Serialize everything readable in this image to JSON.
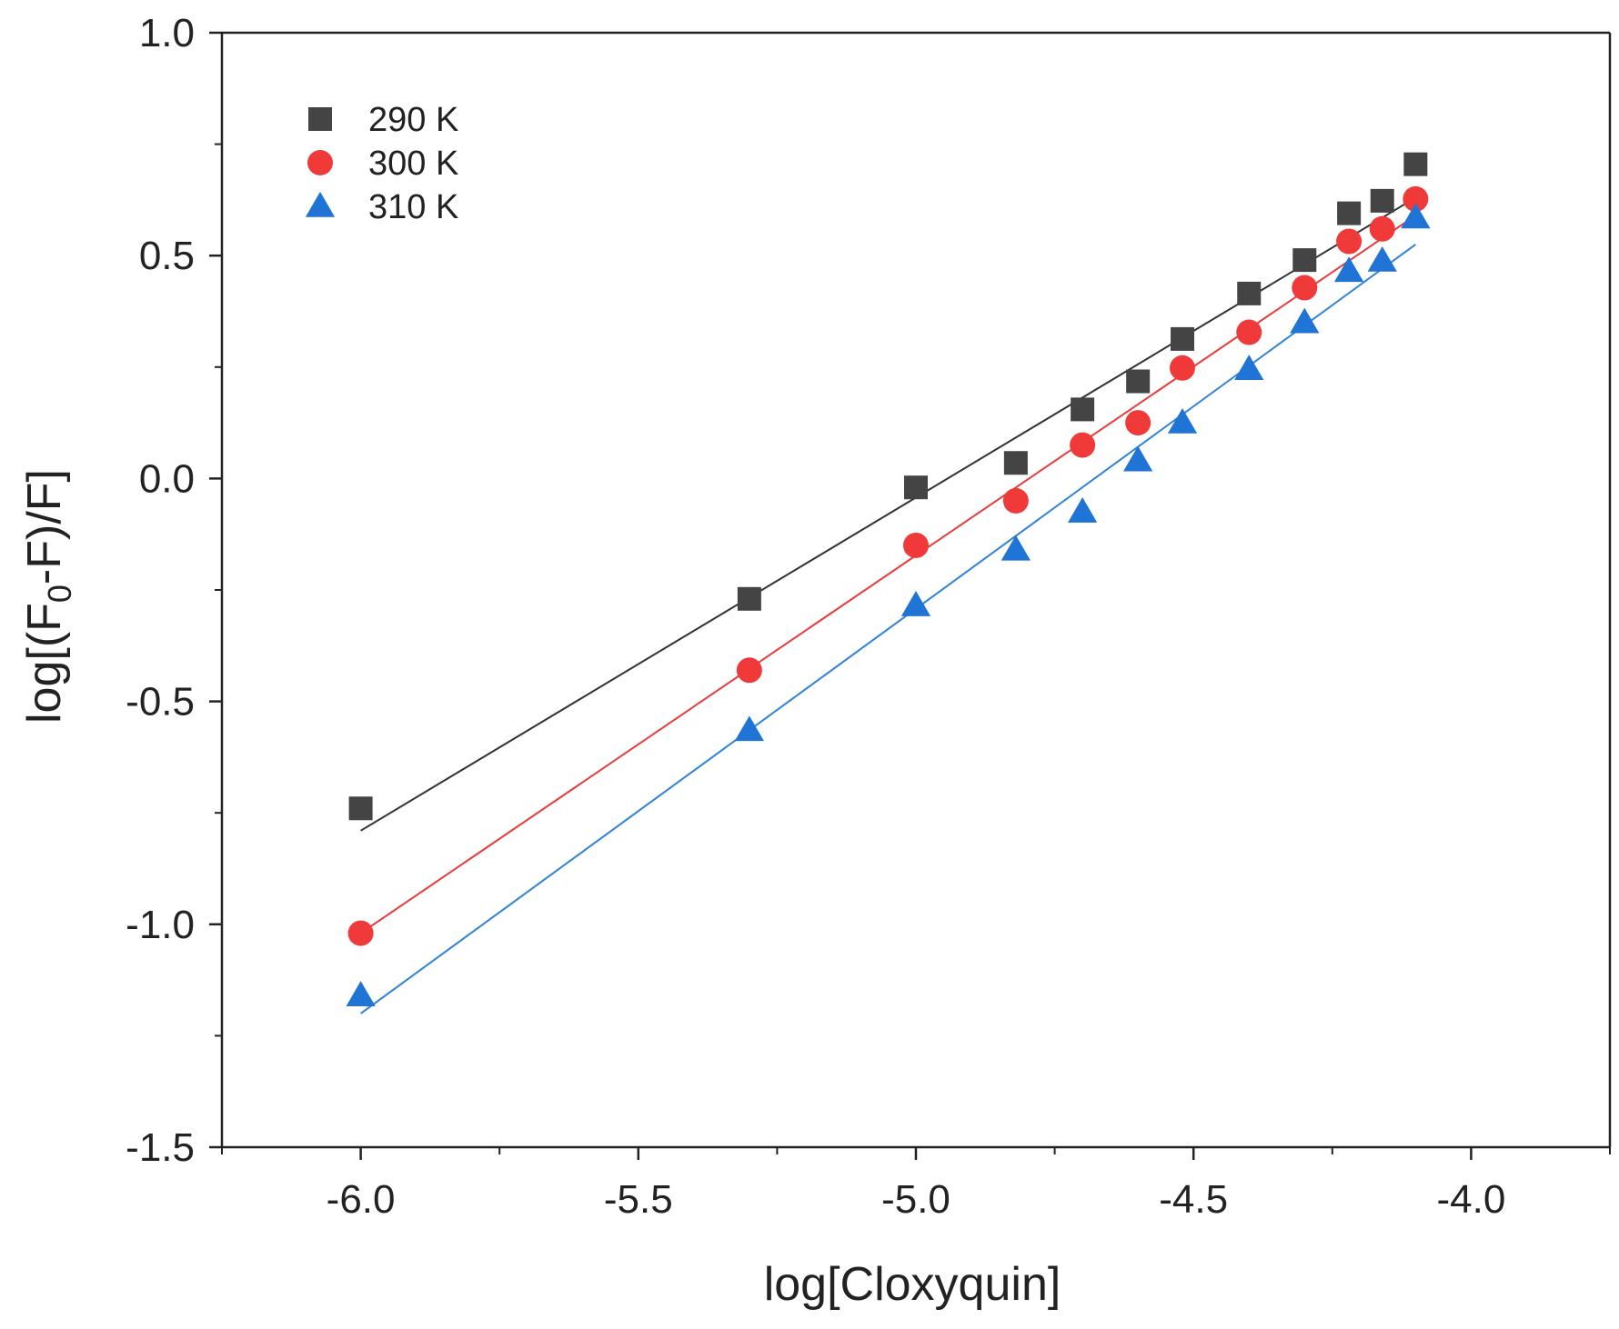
{
  "chart_data": {
    "type": "scatter",
    "xlabel": "log[Cloxyquin]",
    "ylabel": {
      "prefix": "log[(F",
      "subscript": "0",
      "suffix": "-F)/F]"
    },
    "xlim": [
      -6.25,
      -3.75
    ],
    "ylim": [
      -1.5,
      1.0
    ],
    "xticks": [
      {
        "value": -6.0,
        "label": "-6.0"
      },
      {
        "value": -5.5,
        "label": "-5.5"
      },
      {
        "value": -5.0,
        "label": "-5.0"
      },
      {
        "value": -4.5,
        "label": "-4.5"
      },
      {
        "value": -4.0,
        "label": "-4.0"
      }
    ],
    "yticks": [
      {
        "value": -1.5,
        "label": "-1.5"
      },
      {
        "value": -1.0,
        "label": "-1.0"
      },
      {
        "value": -0.5,
        "label": "-0.5"
      },
      {
        "value": 0.0,
        "label": "0.0"
      },
      {
        "value": 0.5,
        "label": "0.5"
      },
      {
        "value": 1.0,
        "label": "1.0"
      }
    ],
    "legend_position": "top-left",
    "series": [
      {
        "name": "290 K",
        "marker": "square",
        "color": "#444444",
        "line_color": "#333333",
        "x": [
          -6.0,
          -5.3,
          -5.0,
          -4.82,
          -4.7,
          -4.6,
          -4.52,
          -4.4,
          -4.3,
          -4.22,
          -4.16,
          -4.1
        ],
        "y": [
          -0.74,
          -0.27,
          -0.02,
          0.035,
          0.155,
          0.218,
          0.313,
          0.415,
          0.49,
          0.595,
          0.623,
          0.705
        ],
        "fit": {
          "x": [
            -6.0,
            -4.1
          ],
          "y": [
            -0.79,
            0.63
          ]
        }
      },
      {
        "name": "300 K",
        "marker": "circle",
        "color": "#f03a3a",
        "line_color": "#e83a3a",
        "x": [
          -6.0,
          -5.3,
          -5.0,
          -4.82,
          -4.7,
          -4.6,
          -4.52,
          -4.4,
          -4.3,
          -4.22,
          -4.16,
          -4.1
        ],
        "y": [
          -1.02,
          -0.43,
          -0.15,
          -0.05,
          0.075,
          0.125,
          0.248,
          0.328,
          0.428,
          0.532,
          0.56,
          0.627
        ],
        "fit": {
          "x": [
            -6.0,
            -4.1
          ],
          "y": [
            -1.02,
            0.59
          ]
        }
      },
      {
        "name": "310 K",
        "marker": "triangle",
        "color": "#1f74d6",
        "line_color": "#2e82d8",
        "x": [
          -6.0,
          -5.3,
          -5.0,
          -4.82,
          -4.7,
          -4.6,
          -4.52,
          -4.4,
          -4.3,
          -4.22,
          -4.16,
          -4.1
        ],
        "y": [
          -1.16,
          -0.565,
          -0.285,
          -0.16,
          -0.075,
          0.04,
          0.125,
          0.245,
          0.35,
          0.465,
          0.488,
          0.585
        ],
        "fit": {
          "x": [
            -6.0,
            -4.1
          ],
          "y": [
            -1.2,
            0.525
          ]
        }
      }
    ]
  }
}
